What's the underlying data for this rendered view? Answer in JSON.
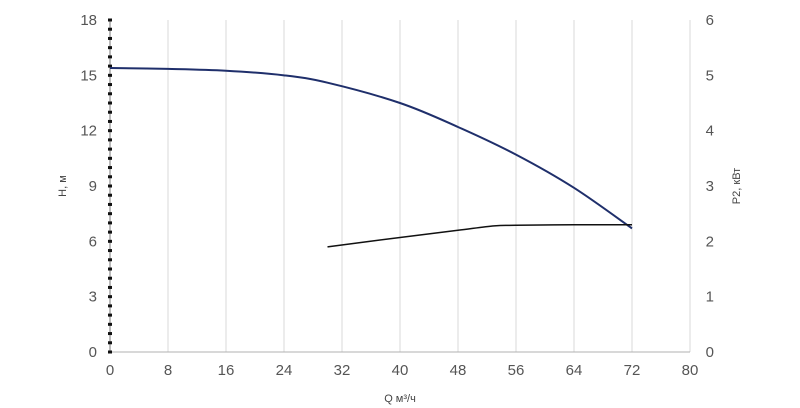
{
  "chart_data": {
    "type": "line",
    "xlabel": "Q м³/ч",
    "ylabel_left": "H, м",
    "ylabel_right": "P2, кВт",
    "xlim": [
      0,
      80
    ],
    "ylim_left": [
      0,
      18
    ],
    "ylim_right": [
      0,
      6
    ],
    "x_ticks": [
      "0",
      "8",
      "16",
      "24",
      "32",
      "40",
      "48",
      "56",
      "64",
      "72",
      "80"
    ],
    "y_left_ticks": [
      "0",
      "3",
      "6",
      "9",
      "12",
      "15",
      "18"
    ],
    "y_right_ticks": [
      "0",
      "1",
      "2",
      "3",
      "4",
      "5",
      "6"
    ],
    "grid": "vertical",
    "series": [
      {
        "axis": "left",
        "color": "#1f2f6b",
        "x": [
          0,
          8,
          16,
          24,
          30,
          40,
          48,
          56,
          64,
          72
        ],
        "y": [
          15.4,
          15.35,
          15.25,
          15.0,
          14.6,
          13.5,
          12.2,
          10.7,
          8.9,
          6.7
        ]
      },
      {
        "axis": "right",
        "color": "#111111",
        "x": [
          30,
          40,
          48,
          53,
          56,
          64,
          72
        ],
        "y": [
          1.9,
          2.07,
          2.2,
          2.28,
          2.29,
          2.3,
          2.3
        ]
      }
    ]
  }
}
